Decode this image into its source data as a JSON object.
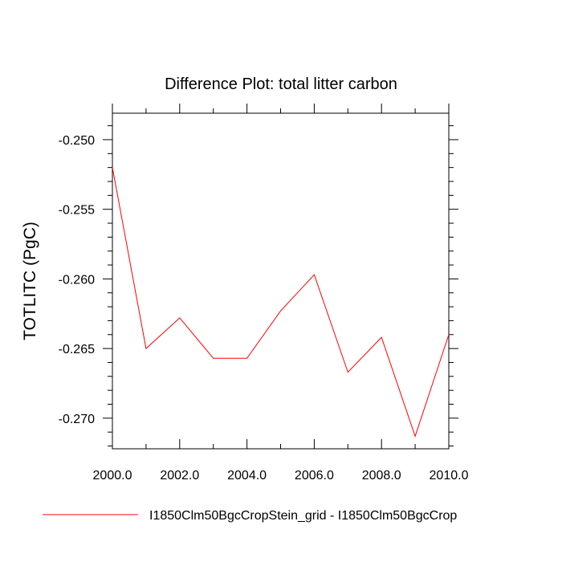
{
  "chart_data": {
    "type": "line",
    "title": "Difference Plot: total litter carbon",
    "xlabel": "",
    "ylabel": "TOTLITC  (PgC)",
    "xlim": [
      2000,
      2010
    ],
    "ylim": [
      -0.2722,
      -0.2481
    ],
    "xticks": [
      2000,
      2002,
      2004,
      2006,
      2008,
      2010
    ],
    "xtick_labels": [
      "2000.0",
      "2002.0",
      "2004.0",
      "2006.0",
      "2008.0",
      "2010.0"
    ],
    "yticks": [
      -0.25,
      -0.255,
      -0.26,
      -0.265,
      -0.27
    ],
    "ytick_labels": [
      "-0.250",
      "-0.255",
      "-0.260",
      "-0.265",
      "-0.270"
    ],
    "grid": false,
    "legend_position": "bottom",
    "series": [
      {
        "name": "I1850Clm50BgcCropStein_grid - I1850Clm50BgcCrop",
        "color": "#ff0000",
        "x": [
          2000,
          2001,
          2002,
          2003,
          2004,
          2005,
          2006,
          2007,
          2008,
          2009,
          2010
        ],
        "y": [
          -0.252,
          -0.265,
          -0.2628,
          -0.2657,
          -0.2657,
          -0.2623,
          -0.2597,
          -0.2667,
          -0.2642,
          -0.2713,
          -0.264
        ]
      }
    ]
  }
}
